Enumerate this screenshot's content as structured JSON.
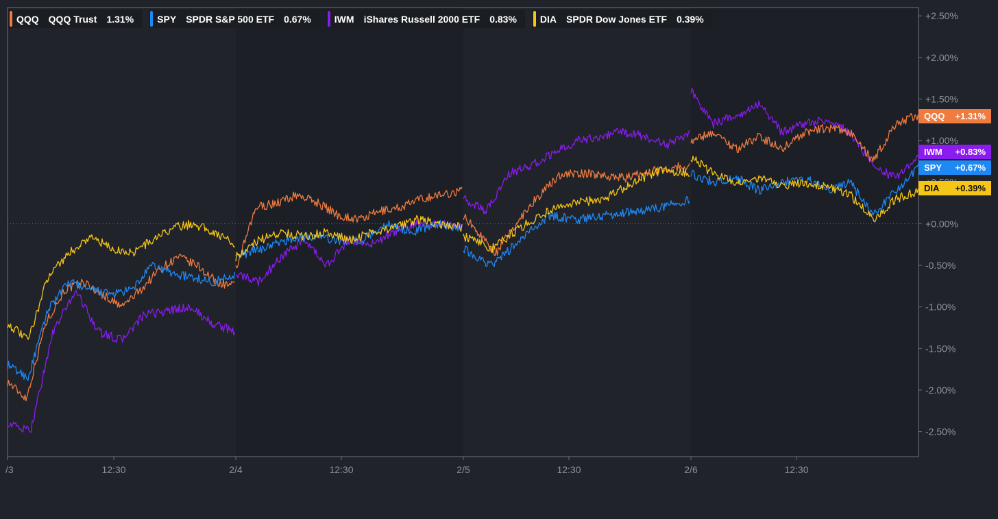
{
  "chart_data": {
    "type": "line",
    "y_unit": "percent",
    "ylim": [
      -2.8,
      2.6
    ],
    "y_ticks": [
      "+2.50%",
      "+2.00%",
      "+1.50%",
      "+1.00%",
      "+0.50%",
      "+0.00%",
      "-0.50%",
      "-1.00%",
      "-1.50%",
      "-2.00%",
      "-2.50%"
    ],
    "y_tick_values": [
      2.5,
      2.0,
      1.5,
      1.0,
      0.5,
      0.0,
      -0.5,
      -1.0,
      -1.5,
      -2.0,
      -2.5
    ],
    "x_ticks": [
      "/3",
      "12:30",
      "2/4",
      "12:30",
      "2/5",
      "12:30",
      "2/6",
      "12:30"
    ],
    "zero_line": true,
    "legend_position": "top-left",
    "series": [
      {
        "symbol": "QQQ",
        "name": "QQQ Trust",
        "change": "1.31%",
        "tag": "+1.31%",
        "color": "#f07b3f",
        "days": [
          [
            -1.9,
            -2.1,
            -1.2,
            -0.8,
            -0.7,
            -0.85,
            -1.0,
            -0.8,
            -0.55,
            -0.4,
            -0.5,
            -0.7,
            -0.75
          ],
          [
            -0.55,
            0.2,
            0.25,
            0.35,
            0.25,
            0.1,
            0.05,
            0.15,
            0.2,
            0.3,
            0.35,
            0.4
          ],
          [
            0.1,
            -0.35,
            0.2,
            0.6,
            0.6,
            0.55,
            0.65,
            0.7
          ],
          [
            1.0,
            1.1,
            0.9,
            1.05,
            0.9,
            1.1,
            1.15,
            1.1,
            0.75,
            1.2,
            1.31
          ]
        ]
      },
      {
        "symbol": "SPY",
        "name": "SPDR S&P 500 ETF",
        "change": "0.67%",
        "tag": "+0.67%",
        "color": "#1e88f5",
        "days": [
          [
            -1.7,
            -1.85,
            -1.0,
            -0.7,
            -0.8,
            -0.85,
            -0.8,
            -0.5,
            -0.6,
            -0.65,
            -0.7,
            -0.6
          ],
          [
            -0.4,
            -0.3,
            -0.2,
            -0.15,
            -0.2,
            -0.2,
            0.0,
            -0.1,
            0.0,
            -0.05
          ],
          [
            -0.3,
            -0.5,
            -0.2,
            0.1,
            0.05,
            0.1,
            0.15,
            0.2,
            0.3
          ],
          [
            0.6,
            0.5,
            0.55,
            0.4,
            0.5,
            0.55,
            0.4,
            0.5,
            0.1,
            0.4,
            0.67
          ]
        ]
      },
      {
        "symbol": "IWM",
        "name": "iShares Russell 2000 ETF",
        "change": "0.83%",
        "tag": "+0.83%",
        "color": "#8a1cf0",
        "days": [
          [
            -2.4,
            -2.5,
            -1.3,
            -0.8,
            -1.3,
            -1.4,
            -1.1,
            -1.05,
            -1.0,
            -1.2,
            -1.3
          ],
          [
            -0.6,
            -0.7,
            -0.4,
            -0.2,
            -0.5,
            -0.2,
            -0.25,
            -0.1,
            0.0,
            0.0,
            -0.05
          ],
          [
            0.3,
            0.15,
            0.6,
            0.7,
            0.85,
            1.0,
            1.05,
            1.1,
            1.05,
            0.95,
            1.1
          ],
          [
            1.6,
            1.2,
            1.3,
            1.45,
            1.1,
            1.2,
            1.25,
            1.1,
            0.7,
            0.55,
            0.83
          ]
        ]
      },
      {
        "symbol": "DIA",
        "name": "SPDR Dow Jones ETF",
        "change": "0.39%",
        "tag": "+0.39%",
        "color": "#f5c518",
        "days": [
          [
            -1.2,
            -1.4,
            -0.6,
            -0.35,
            -0.15,
            -0.3,
            -0.35,
            -0.2,
            -0.05,
            0.0,
            -0.1,
            -0.25
          ],
          [
            -0.4,
            -0.2,
            -0.1,
            -0.15,
            -0.1,
            -0.2,
            -0.1,
            -0.05,
            0.05,
            0.0,
            -0.05
          ],
          [
            -0.15,
            -0.3,
            -0.05,
            0.15,
            0.25,
            0.3,
            0.5,
            0.65,
            0.6
          ],
          [
            0.8,
            0.6,
            0.5,
            0.55,
            0.45,
            0.5,
            0.45,
            0.35,
            0.05,
            0.3,
            0.39
          ]
        ]
      }
    ]
  }
}
